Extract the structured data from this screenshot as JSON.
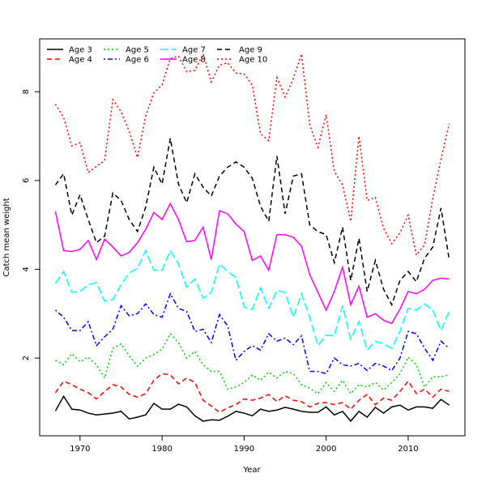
{
  "chart_data": {
    "type": "line",
    "xlabel": "Year",
    "ylabel": "Catch mean weight",
    "x": [
      1967,
      1968,
      1969,
      1970,
      1971,
      1972,
      1973,
      1974,
      1975,
      1976,
      1977,
      1978,
      1979,
      1980,
      1981,
      1982,
      1983,
      1984,
      1985,
      1986,
      1987,
      1988,
      1989,
      1990,
      1991,
      1992,
      1993,
      1994,
      1995,
      1996,
      1997,
      1998,
      1999,
      2000,
      2001,
      2002,
      2003,
      2004,
      2005,
      2006,
      2007,
      2008,
      2009,
      2010,
      2011,
      2012,
      2013,
      2014,
      2015
    ],
    "xlim": [
      1965.08,
      2016.92
    ],
    "xticks": [
      1970,
      1980,
      1990,
      2000,
      2010
    ],
    "ylim": [
      0.25,
      9.19
    ],
    "yticks": [
      2,
      4,
      6,
      8
    ],
    "legend_position": "top-left",
    "series": [
      {
        "name": "Age 3",
        "color": "#000000",
        "linestyle": "solid",
        "values": [
          0.81,
          1.14,
          0.85,
          0.83,
          0.76,
          0.72,
          0.74,
          0.76,
          0.8,
          0.63,
          0.67,
          0.72,
          0.98,
          0.85,
          0.85,
          0.96,
          0.9,
          0.7,
          0.58,
          0.61,
          0.6,
          0.69,
          0.8,
          0.76,
          0.7,
          0.85,
          0.8,
          0.83,
          0.89,
          0.85,
          0.8,
          0.78,
          0.78,
          0.9,
          0.72,
          0.8,
          0.58,
          0.8,
          0.67,
          0.89,
          0.76,
          0.9,
          0.94,
          0.83,
          0.9,
          0.9,
          0.87,
          1.07,
          0.94
        ]
      },
      {
        "name": "Age 4",
        "color": "#ff0000",
        "linestyle": "dashed",
        "values": [
          1.22,
          1.48,
          1.4,
          1.3,
          1.22,
          1.08,
          1.25,
          1.4,
          1.35,
          1.18,
          1.12,
          1.2,
          1.5,
          1.65,
          1.62,
          1.42,
          1.55,
          1.45,
          1.05,
          0.92,
          0.78,
          0.88,
          0.95,
          1.08,
          1.05,
          1.1,
          1.18,
          1.02,
          1.15,
          1.05,
          1.02,
          0.9,
          0.98,
          1.0,
          0.95,
          1.0,
          0.85,
          1.05,
          1.18,
          0.95,
          1.1,
          1.05,
          1.25,
          1.48,
          1.2,
          1.3,
          1.12,
          1.3,
          1.25
        ]
      },
      {
        "name": "Age 5",
        "color": "#00cd00",
        "linestyle": "dotted",
        "values": [
          1.95,
          1.85,
          2.1,
          1.92,
          2.02,
          1.85,
          1.55,
          2.22,
          2.32,
          2.05,
          1.82,
          2.0,
          2.08,
          2.2,
          2.55,
          2.35,
          2.0,
          2.15,
          1.85,
          1.7,
          1.7,
          1.3,
          1.35,
          1.45,
          1.62,
          1.5,
          1.68,
          1.55,
          1.7,
          1.65,
          1.4,
          1.32,
          1.2,
          1.45,
          1.25,
          1.5,
          1.2,
          1.4,
          1.35,
          1.45,
          1.28,
          1.45,
          1.65,
          2.02,
          1.85,
          1.35,
          1.58,
          1.58,
          1.62
        ]
      },
      {
        "name": "Age 6",
        "color": "#0000ff",
        "linestyle": "dotdash",
        "values": [
          3.08,
          2.92,
          2.62,
          2.62,
          2.82,
          2.28,
          2.48,
          2.65,
          3.18,
          2.95,
          3.0,
          3.22,
          2.98,
          2.92,
          3.45,
          3.12,
          3.05,
          2.6,
          2.65,
          2.35,
          2.98,
          2.72,
          1.95,
          2.15,
          2.28,
          2.18,
          2.55,
          2.38,
          2.45,
          2.3,
          2.5,
          1.7,
          1.7,
          1.65,
          2.0,
          1.85,
          1.82,
          1.88,
          1.72,
          1.88,
          1.82,
          1.72,
          2.0,
          2.6,
          2.55,
          2.22,
          1.95,
          2.38,
          2.22
        ]
      },
      {
        "name": "Age 7",
        "color": "#00ffff",
        "linestyle": "longdash",
        "values": [
          3.68,
          3.95,
          3.48,
          3.5,
          3.65,
          3.7,
          3.28,
          3.32,
          3.65,
          3.92,
          4.02,
          4.42,
          3.98,
          3.98,
          4.42,
          4.12,
          3.6,
          3.78,
          3.35,
          3.48,
          4.12,
          3.95,
          3.82,
          3.15,
          3.1,
          3.58,
          3.12,
          3.52,
          3.48,
          2.92,
          3.45,
          2.92,
          2.28,
          2.52,
          2.5,
          3.18,
          2.42,
          2.82,
          2.18,
          2.38,
          2.32,
          2.22,
          2.6,
          3.12,
          3.08,
          3.22,
          3.08,
          2.62,
          3.05
        ]
      },
      {
        "name": "Age 8",
        "color": "#ff00ff",
        "linestyle": "solid",
        "values": [
          5.3,
          4.42,
          4.4,
          4.45,
          4.65,
          4.22,
          4.68,
          4.5,
          4.3,
          4.38,
          4.6,
          4.9,
          5.28,
          5.12,
          5.48,
          5.12,
          4.62,
          4.65,
          4.95,
          4.22,
          5.32,
          5.25,
          5.02,
          4.85,
          4.2,
          4.3,
          3.98,
          4.78,
          4.78,
          4.72,
          4.52,
          3.88,
          3.48,
          3.08,
          3.5,
          4.05,
          3.2,
          3.62,
          2.92,
          3.0,
          2.85,
          2.78,
          3.1,
          3.5,
          3.45,
          3.55,
          3.75,
          3.8,
          3.78
        ]
      },
      {
        "name": "Age 9",
        "color": "#000000",
        "linestyle": "dashed",
        "values": [
          5.9,
          6.15,
          5.22,
          5.68,
          5.12,
          4.6,
          4.75,
          5.72,
          5.55,
          5.12,
          4.85,
          5.4,
          6.3,
          5.92,
          6.95,
          5.92,
          5.5,
          6.15,
          5.85,
          5.65,
          6.1,
          6.3,
          6.42,
          6.3,
          6.05,
          5.42,
          5.08,
          6.55,
          5.25,
          6.1,
          6.15,
          5.0,
          4.85,
          4.78,
          4.15,
          4.95,
          3.75,
          4.7,
          3.5,
          4.2,
          3.55,
          3.2,
          3.75,
          3.95,
          3.72,
          4.25,
          4.5,
          5.38,
          4.22
        ]
      },
      {
        "name": "Age 10",
        "color": "#ff0000",
        "linestyle": "dotted",
        "values": [
          7.72,
          7.42,
          6.78,
          6.85,
          6.18,
          6.32,
          6.45,
          7.82,
          7.55,
          7.1,
          6.52,
          7.45,
          7.98,
          8.15,
          8.75,
          8.8,
          8.45,
          8.48,
          8.85,
          8.22,
          8.6,
          8.65,
          8.42,
          8.4,
          8.15,
          7.05,
          6.9,
          8.32,
          7.88,
          8.3,
          8.85,
          7.25,
          6.75,
          7.48,
          6.2,
          5.9,
          5.08,
          7.0,
          5.55,
          5.62,
          4.92,
          4.58,
          4.82,
          5.22,
          4.32,
          4.55,
          5.6,
          6.48,
          7.28
        ]
      }
    ]
  }
}
